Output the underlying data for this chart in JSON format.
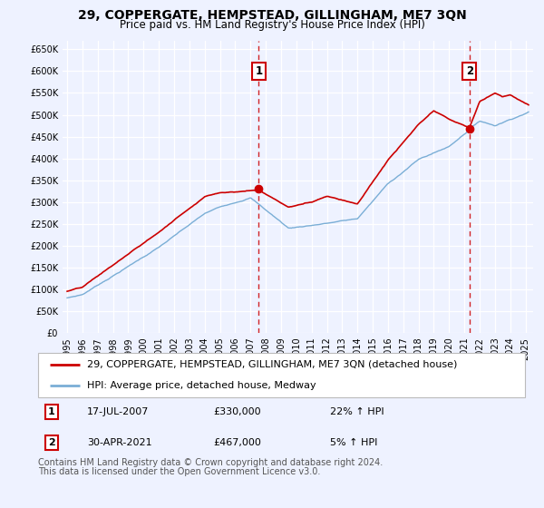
{
  "title": "29, COPPERGATE, HEMPSTEAD, GILLINGHAM, ME7 3QN",
  "subtitle": "Price paid vs. HM Land Registry's House Price Index (HPI)",
  "ylabel_ticks": [
    "£0",
    "£50K",
    "£100K",
    "£150K",
    "£200K",
    "£250K",
    "£300K",
    "£350K",
    "£400K",
    "£450K",
    "£500K",
    "£550K",
    "£600K",
    "£650K"
  ],
  "ytick_values": [
    0,
    50000,
    100000,
    150000,
    200000,
    250000,
    300000,
    350000,
    400000,
    450000,
    500000,
    550000,
    600000,
    650000
  ],
  "xlim": [
    1994.7,
    2025.5
  ],
  "ylim": [
    0,
    670000
  ],
  "background_color": "#eef2ff",
  "grid_color": "#ffffff",
  "red_line_color": "#cc0000",
  "blue_line_color": "#7aaed6",
  "marker1_x": 2007.54,
  "marker1_y": 330000,
  "marker2_x": 2021.33,
  "marker2_y": 467000,
  "vline1_x": 2007.54,
  "vline2_x": 2021.33,
  "vline_color": "#cc0000",
  "legend_line1": "29, COPPERGATE, HEMPSTEAD, GILLINGHAM, ME7 3QN (detached house)",
  "legend_line2": "HPI: Average price, detached house, Medway",
  "table_row1": [
    "1",
    "17-JUL-2007",
    "£330,000",
    "22% ↑ HPI"
  ],
  "table_row2": [
    "2",
    "30-APR-2021",
    "£467,000",
    "5% ↑ HPI"
  ],
  "footnote1": "Contains HM Land Registry data © Crown copyright and database right 2024.",
  "footnote2": "This data is licensed under the Open Government Licence v3.0.",
  "title_fontsize": 10,
  "subtitle_fontsize": 8.5,
  "tick_fontsize": 7,
  "legend_fontsize": 8,
  "table_fontsize": 8,
  "footnote_fontsize": 7
}
